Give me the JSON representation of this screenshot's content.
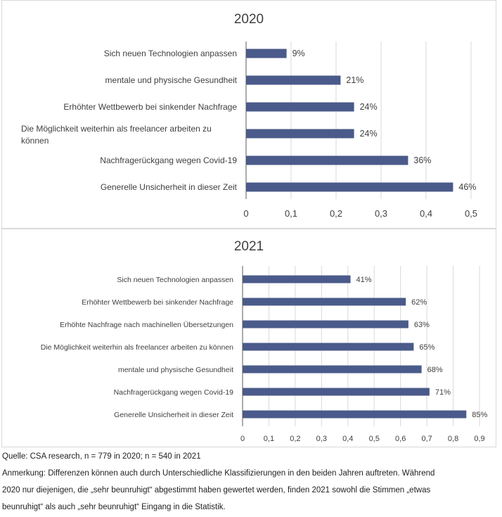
{
  "chart_data": [
    {
      "type": "bar",
      "orientation": "horizontal",
      "title": "2020",
      "categories": [
        "Sich neuen Technologien anpassen",
        "mentale und physische Gesundheit",
        "Erhöhter Wettbewerb bei sinkender Nachfrage",
        [
          "Die Möglichkeit weiterhin als freelancer arbeiten zu",
          "können"
        ],
        "Nachfragerückgang wegen Covid-19",
        "Generelle Unsicherheit in dieser Zeit"
      ],
      "values": [
        0.09,
        0.21,
        0.24,
        0.24,
        0.36,
        0.46
      ],
      "data_labels": [
        "9%",
        "21%",
        "24%",
        "24%",
        "36%",
        "46%"
      ],
      "xlim": [
        0,
        0.5
      ],
      "xticks": [
        "0",
        "0,1",
        "0,2",
        "0,3",
        "0,4",
        "0,5"
      ],
      "grid": true,
      "bar_color": "#4a5a8a"
    },
    {
      "type": "bar",
      "orientation": "horizontal",
      "title": "2021",
      "categories": [
        "Sich neuen Technologien anpassen",
        "Erhöhter Wettbewerb bei sinkender Nachfrage",
        "Erhöhte Nachfrage nach machinellen Übersetzungen",
        "Die Möglichkeit weiterhin als freelancer arbeiten zu können",
        "mentale und physische Gesundheit",
        "Nachfragerückgang wegen Covid-19",
        "Generelle Unsicherheit in dieser Zeit"
      ],
      "values": [
        0.41,
        0.62,
        0.63,
        0.65,
        0.68,
        0.71,
        0.85
      ],
      "data_labels": [
        "41%",
        "62%",
        "63%",
        "65%",
        "68%",
        "71%",
        "85%"
      ],
      "xlim": [
        0,
        0.9
      ],
      "xticks": [
        "0",
        "0,1",
        "0,2",
        "0,3",
        "0,4",
        "0,5",
        "0,6",
        "0,7",
        "0,8",
        "0,9"
      ],
      "grid": true,
      "bar_color": "#4a5a8a"
    }
  ],
  "footer": {
    "source": "Quelle: CSA research, n = 779 in 2020; n = 540 in 2021",
    "note_1": "Anmerkung: Differenzen können auch durch Unterschiedliche Klassifizierungen in den beiden Jahren auftreten. Während",
    "note_2": "2020 nur diejenigen, die „sehr beunruhigt“ abgestimmt haben gewertet werden, finden 2021 sowohl die Stimmen „etwas",
    "note_3": "beunruhigt“ als auch „sehr beunruhigt“ Eingang in die Statistik."
  }
}
